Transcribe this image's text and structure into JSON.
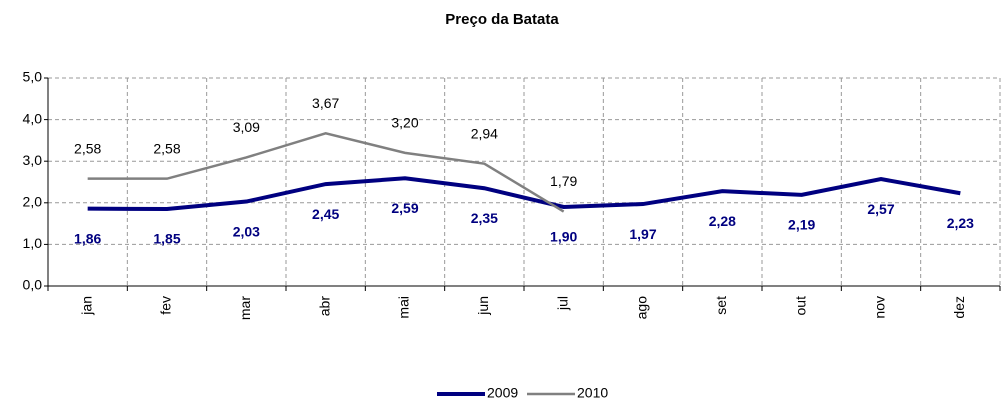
{
  "chart_data": {
    "type": "line",
    "title": "Preço da Batata",
    "categories": [
      "jan",
      "fev",
      "mar",
      "abr",
      "mai",
      "jun",
      "jul",
      "ago",
      "set",
      "out",
      "nov",
      "dez"
    ],
    "series": [
      {
        "name": "2009",
        "color": "#000080",
        "values": [
          1.86,
          1.85,
          2.03,
          2.45,
          2.59,
          2.35,
          1.9,
          1.97,
          2.28,
          2.19,
          2.57,
          2.23
        ],
        "value_labels": [
          "1,86",
          "1,85",
          "2,03",
          "2,45",
          "2,59",
          "2,35",
          "1,90",
          "1,97",
          "2,28",
          "2,19",
          "2,57",
          "2,23"
        ]
      },
      {
        "name": "2010",
        "color": "#808080",
        "values": [
          2.58,
          2.58,
          3.09,
          3.67,
          3.2,
          2.94,
          1.79,
          null,
          null,
          null,
          null,
          null
        ],
        "value_labels": [
          "2,58",
          "2,58",
          "3,09",
          "3,67",
          "3,20",
          "2,94",
          "1,79",
          null,
          null,
          null,
          null,
          null
        ]
      }
    ],
    "ylim": [
      0,
      5
    ],
    "yticks": [
      {
        "value": 0,
        "label": "0,0"
      },
      {
        "value": 1,
        "label": "1,0"
      },
      {
        "value": 2,
        "label": "2,0"
      },
      {
        "value": 3,
        "label": "3,0"
      },
      {
        "value": 4,
        "label": "4,0"
      },
      {
        "value": 5,
        "label": "5,0"
      }
    ],
    "grid": true,
    "legend": "bottom"
  }
}
